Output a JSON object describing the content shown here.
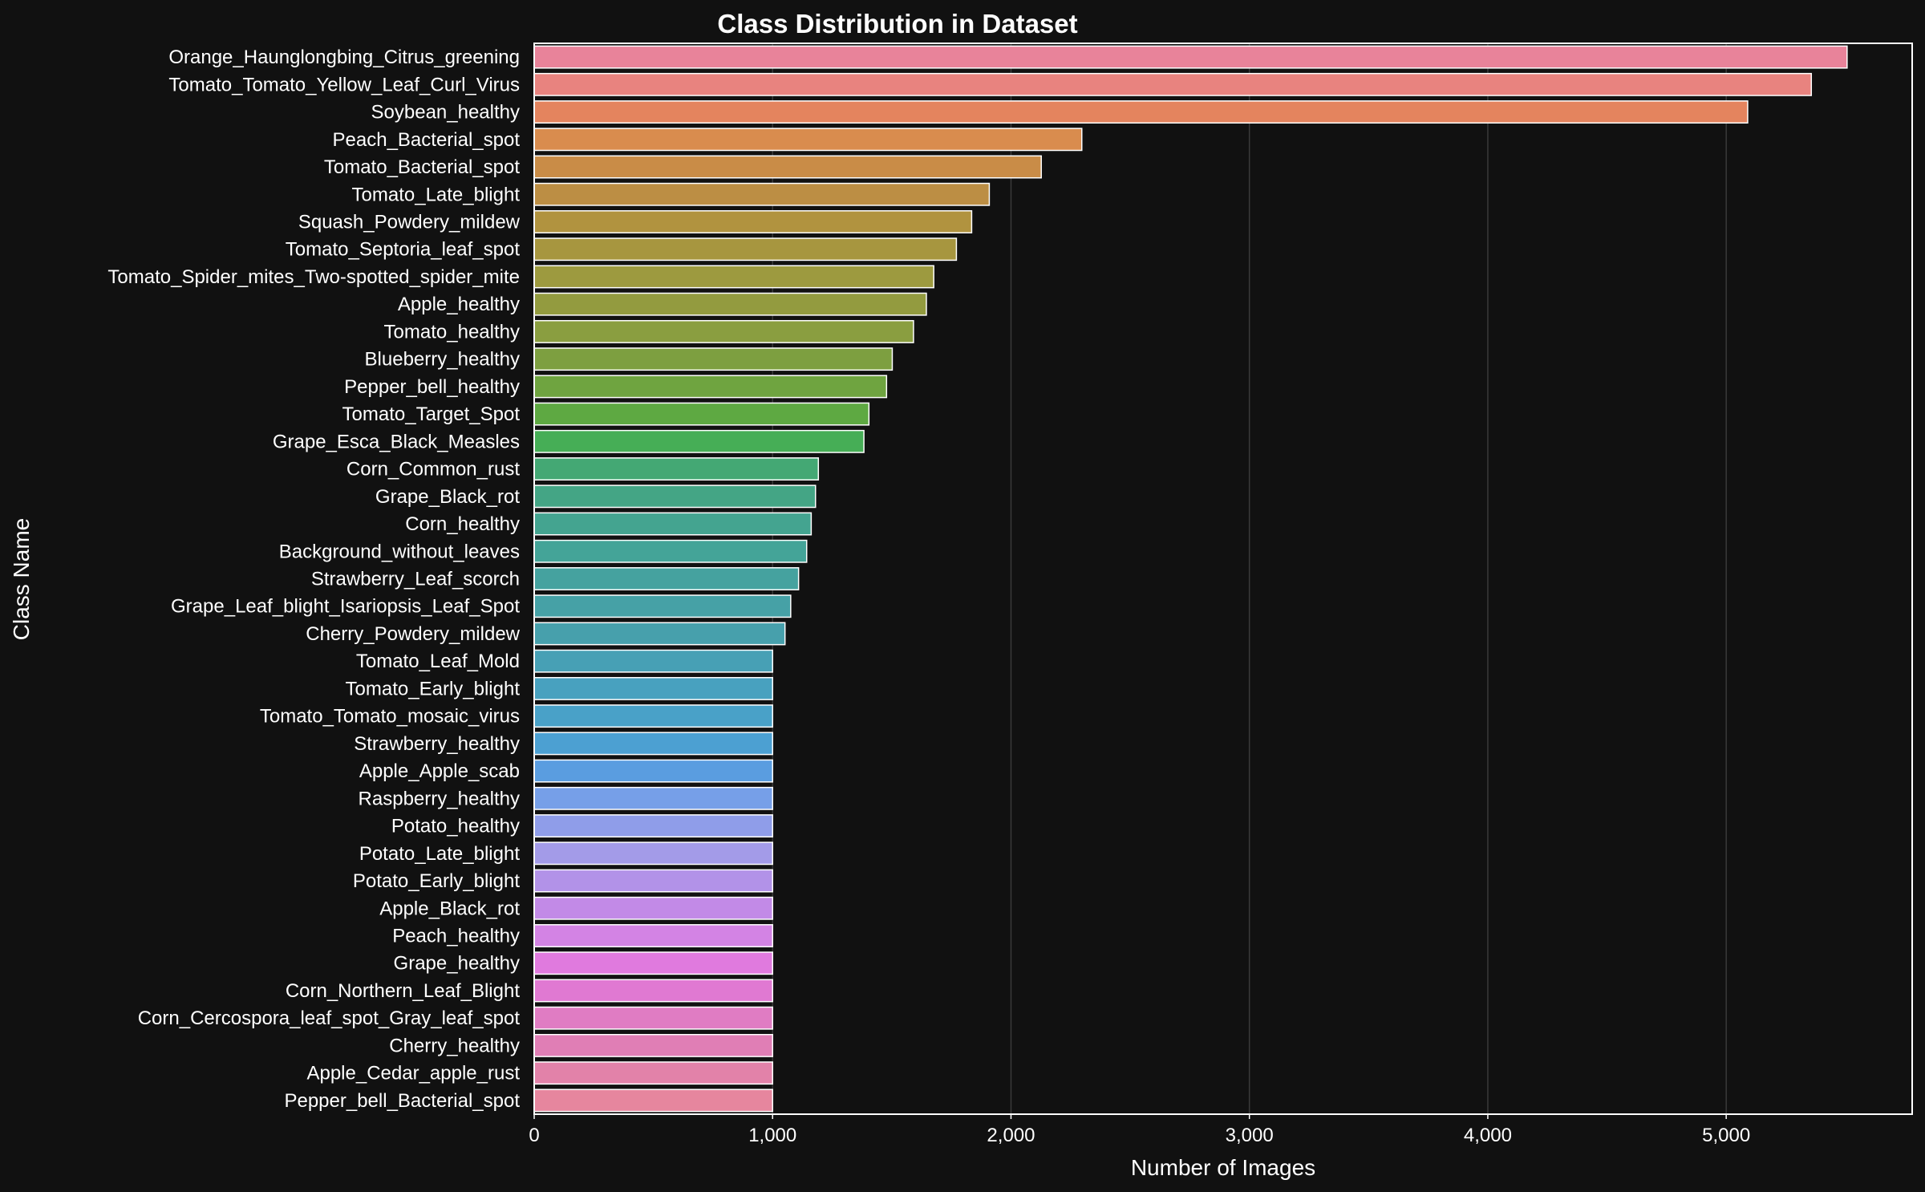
{
  "chart_data": {
    "type": "bar",
    "orientation": "horizontal",
    "title": "Class Distribution in Dataset",
    "xlabel": "Number of Images",
    "ylabel": "Class Name",
    "xlim": [
      0,
      5780
    ],
    "xticks": [
      0,
      1000,
      2000,
      3000,
      4000,
      5000
    ],
    "xtick_labels": [
      "0",
      "1,000",
      "2,000",
      "3,000",
      "4,000",
      "5,000"
    ],
    "grid": "vertical",
    "background": "#111111",
    "categories": [
      "Orange_Haunglongbing_Citrus_greening",
      "Tomato_Tomato_Yellow_Leaf_Curl_Virus",
      "Soybean_healthy",
      "Peach_Bacterial_spot",
      "Tomato_Bacterial_spot",
      "Tomato_Late_blight",
      "Squash_Powdery_mildew",
      "Tomato_Septoria_leaf_spot",
      "Tomato_Spider_mites_Two-spotted_spider_mite",
      "Apple_healthy",
      "Tomato_healthy",
      "Blueberry_healthy",
      "Pepper_bell_healthy",
      "Tomato_Target_Spot",
      "Grape_Esca_Black_Measles",
      "Corn_Common_rust",
      "Grape_Black_rot",
      "Corn_healthy",
      "Background_without_leaves",
      "Strawberry_Leaf_scorch",
      "Grape_Leaf_blight_Isariopsis_Leaf_Spot",
      "Cherry_Powdery_mildew",
      "Tomato_Leaf_Mold",
      "Tomato_Early_blight",
      "Tomato_Tomato_mosaic_virus",
      "Strawberry_healthy",
      "Apple_Apple_scab",
      "Raspberry_healthy",
      "Potato_healthy",
      "Potato_Late_blight",
      "Potato_Early_blight",
      "Apple_Black_rot",
      "Peach_healthy",
      "Grape_healthy",
      "Corn_Northern_Leaf_Blight",
      "Corn_Cercospora_leaf_spot_Gray_leaf_spot",
      "Cherry_healthy",
      "Apple_Cedar_apple_rust",
      "Pepper_bell_Bacterial_spot"
    ],
    "values": [
      5507,
      5357,
      5090,
      2297,
      2127,
      1909,
      1835,
      1771,
      1676,
      1645,
      1591,
      1502,
      1478,
      1404,
      1383,
      1192,
      1180,
      1162,
      1143,
      1109,
      1076,
      1052,
      1000,
      1000,
      1000,
      1000,
      1000,
      1000,
      1000,
      1000,
      1000,
      1000,
      1000,
      1000,
      1000,
      1000,
      1000,
      1000,
      1000
    ],
    "colors": [
      "#e8839a",
      "#e8837f",
      "#e4845e",
      "#d98c4e",
      "#c98c47",
      "#bc8e44",
      "#b1933f",
      "#a7963f",
      "#9d9a3f",
      "#939b3f",
      "#8a9e40",
      "#7d9f40",
      "#6fa440",
      "#5ea942",
      "#46ae56",
      "#44a874",
      "#44a585",
      "#44a490",
      "#44a498",
      "#45a29f",
      "#46a1a6",
      "#47a0ac",
      "#47a0b5",
      "#48a1bf",
      "#49a1c8",
      "#4ca0d2",
      "#5a9de0",
      "#769fe8",
      "#8f9de9",
      "#a39be8",
      "#b292e8",
      "#c28ae7",
      "#d383e4",
      "#e07ade",
      "#e079d2",
      "#e07cc3",
      "#e07eb5",
      "#e282a9",
      "#e6869e"
    ]
  }
}
